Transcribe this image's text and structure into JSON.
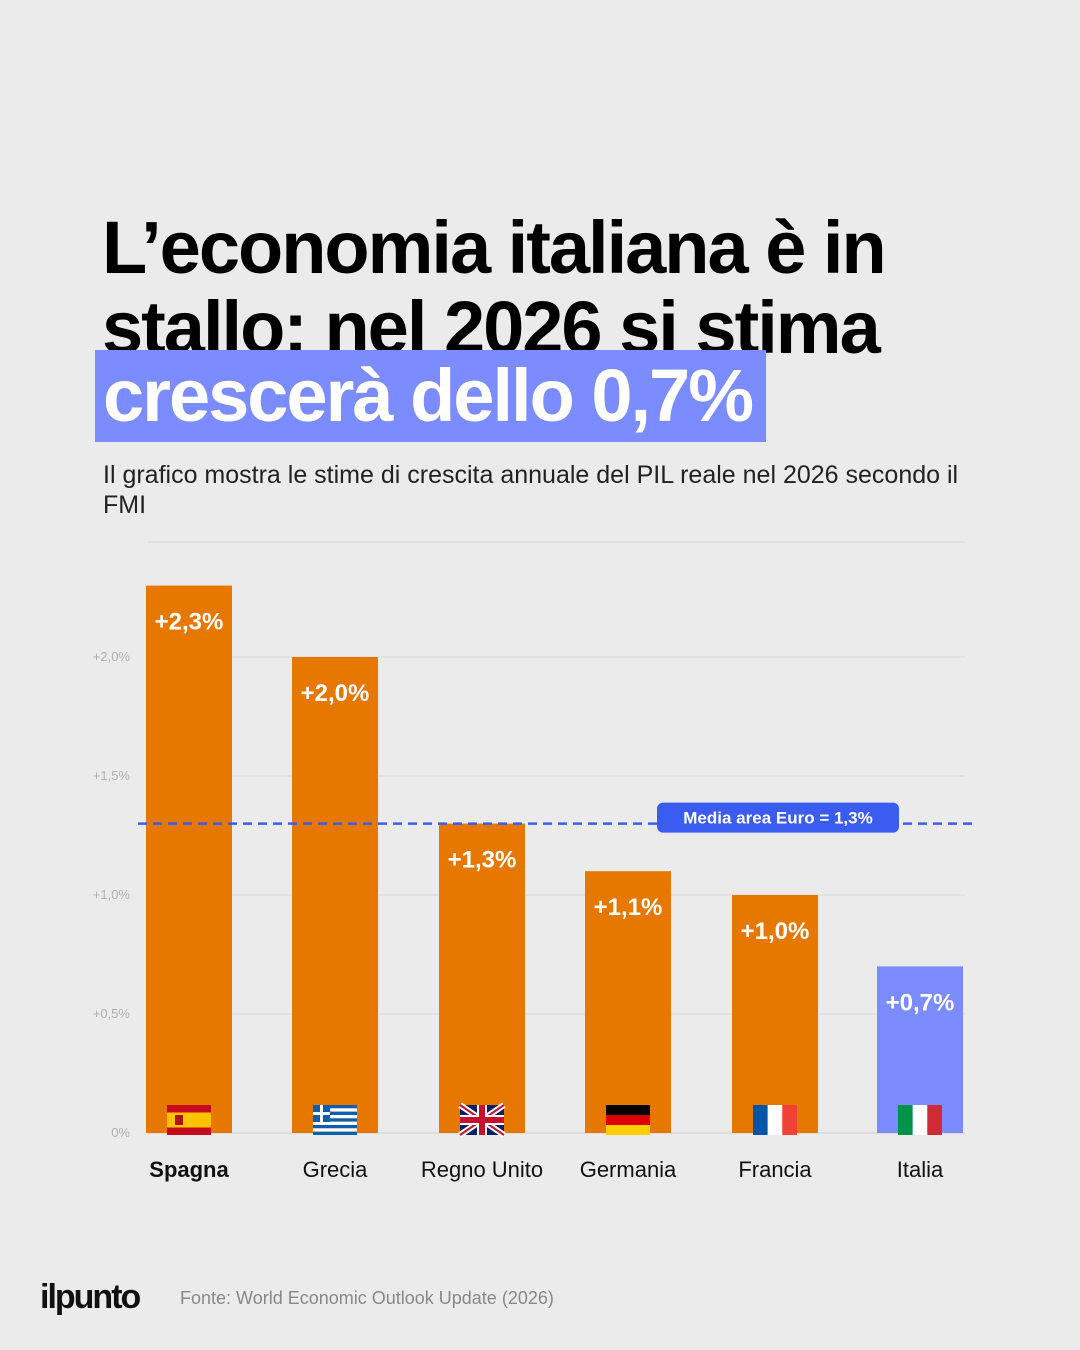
{
  "header": {
    "title_line1": "L’economia italiana è in",
    "title_line2": "stallo: nel 2026 si stima",
    "title_highlight": "crescerà dello 0,7%",
    "subtitle": "Il grafico mostra le stime di crescita annuale del PIL reale nel 2026 secondo il FMI"
  },
  "colors": {
    "bar": "#e67800",
    "highlight_bar": "#7b8cff",
    "reference": "#3a5cf0",
    "background": "#ebebeb"
  },
  "chart_data": {
    "type": "bar",
    "title": "L’economia italiana è in stallo: nel 2026 si stima crescerà dello 0,7%",
    "categories": [
      "Spagna",
      "Grecia",
      "Regno Unito",
      "Germania",
      "Francia",
      "Italia"
    ],
    "values": [
      2.3,
      2.0,
      1.3,
      1.1,
      1.0,
      0.7
    ],
    "value_labels": [
      "+2,3%",
      "+2,0%",
      "+1,3%",
      "+1,1%",
      "+1,0%",
      "+0,7%"
    ],
    "flags": [
      "flag-spain-icon",
      "flag-greece-icon",
      "flag-uk-icon",
      "flag-germany-icon",
      "flag-france-icon",
      "flag-italy-icon"
    ],
    "highlight_index": 5,
    "bold_category_index": 0,
    "ylim": [
      0,
      2.5
    ],
    "yticks": [
      0,
      0.5,
      1.0,
      1.5,
      2.0
    ],
    "ytick_labels": [
      "0%",
      "+0,5%",
      "+1,0%",
      "+1,5%",
      "+2,0%"
    ],
    "reference_line": {
      "value": 1.3,
      "label": "Media area Euro = 1,3%"
    },
    "xlabel": "",
    "ylabel": ""
  },
  "footer": {
    "logo": "ilpunto",
    "source": "Fonte: World Economic Outlook  Update (2026)"
  }
}
